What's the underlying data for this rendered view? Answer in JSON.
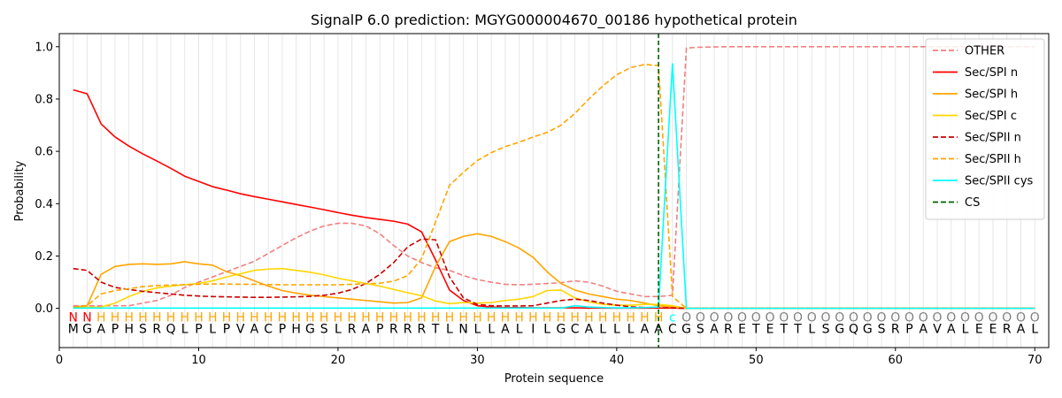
{
  "chart_data": {
    "type": "line",
    "title": "SignalP 6.0 prediction: MGYG000004670_00186 hypothetical protein",
    "xlabel": "Protein sequence",
    "ylabel": "Probability",
    "xlim": [
      0,
      71
    ],
    "ylim": [
      -0.15,
      1.05
    ],
    "x_ticks": [
      0,
      10,
      20,
      30,
      40,
      50,
      60,
      70
    ],
    "y_ticks": [
      0.0,
      0.2,
      0.4,
      0.6,
      0.8,
      1.0
    ],
    "y_tick_labels": [
      "0.0",
      "0.2",
      "0.4",
      "0.6",
      "0.8",
      "1.0"
    ],
    "grid": "vertical lines at every residue",
    "legend_position": "top-right",
    "sequence": [
      "M",
      "G",
      "A",
      "P",
      "H",
      "S",
      "R",
      "Q",
      "L",
      "P",
      "L",
      "P",
      "V",
      "A",
      "C",
      "P",
      "H",
      "G",
      "S",
      "L",
      "R",
      "A",
      "P",
      "R",
      "R",
      "R",
      "T",
      "L",
      "N",
      "L",
      "L",
      "A",
      "L",
      "I",
      "L",
      "G",
      "C",
      "A",
      "L",
      "L",
      "L",
      "A",
      "A",
      "C",
      "G",
      "S",
      "A",
      "R",
      "E",
      "T",
      "E",
      "T",
      "T",
      "L",
      "S",
      "G",
      "Q",
      "G",
      "S",
      "R",
      "P",
      "A",
      "V",
      "A",
      "L",
      "E",
      "E",
      "R",
      "A",
      "L"
    ],
    "labels": [
      "N",
      "N",
      "H",
      "H",
      "H",
      "H",
      "H",
      "H",
      "H",
      "H",
      "H",
      "H",
      "H",
      "H",
      "H",
      "H",
      "H",
      "H",
      "H",
      "H",
      "H",
      "H",
      "H",
      "H",
      "H",
      "H",
      "H",
      "H",
      "H",
      "H",
      "H",
      "H",
      "H",
      "H",
      "H",
      "H",
      "H",
      "H",
      "H",
      "H",
      "H",
      "H",
      "H",
      "C",
      "O",
      "O",
      "O",
      "O",
      "O",
      "O",
      "O",
      "O",
      "O",
      "O",
      "O",
      "O",
      "O",
      "O",
      "O",
      "O",
      "O",
      "O",
      "O",
      "O",
      "O",
      "O",
      "O",
      "O",
      "O",
      "O"
    ],
    "label_colors": {
      "N": "#ff0000",
      "H": "#ffa500",
      "C": "#00ffff",
      "O": "#808080"
    },
    "cs_position": 43,
    "cs_label": "CS",
    "cs_color": "#006400",
    "series": [
      {
        "name": "OTHER",
        "color": "#f08080",
        "dash": true,
        "values": [
          0.01,
          0.01,
          0.01,
          0.01,
          0.01,
          0.02,
          0.03,
          0.05,
          0.08,
          0.1,
          0.12,
          0.14,
          0.16,
          0.18,
          0.21,
          0.24,
          0.27,
          0.295,
          0.315,
          0.325,
          0.325,
          0.315,
          0.285,
          0.24,
          0.2,
          0.175,
          0.155,
          0.145,
          0.125,
          0.11,
          0.1,
          0.092,
          0.09,
          0.092,
          0.095,
          0.098,
          0.105,
          0.1,
          0.085,
          0.065,
          0.055,
          0.045,
          0.045,
          0.05,
          0.995,
          0.998,
          0.999,
          1.0,
          1.0,
          1.0,
          1.0,
          1.0,
          1.0,
          1.0,
          1.0,
          1.0,
          1.0,
          1.0,
          1.0,
          1.0,
          1.0,
          1.0,
          1.0,
          1.0,
          1.0,
          1.0,
          1.0,
          1.0,
          1.0,
          1.0
        ]
      },
      {
        "name": "Sec/SPI n",
        "color": "#ff0000",
        "dash": false,
        "values": [
          0.835,
          0.82,
          0.705,
          0.655,
          0.62,
          0.59,
          0.563,
          0.535,
          0.505,
          0.485,
          0.465,
          0.452,
          0.438,
          0.427,
          0.417,
          0.407,
          0.397,
          0.387,
          0.377,
          0.366,
          0.356,
          0.347,
          0.34,
          0.333,
          0.322,
          0.292,
          0.185,
          0.07,
          0.03,
          0.01,
          0.005,
          0.003,
          0.003,
          0.002,
          0.002,
          0.002,
          0.002,
          0.001,
          0.001,
          0.001,
          0.001,
          0.001,
          0.001,
          0.001,
          0,
          0,
          0,
          0,
          0,
          0,
          0,
          0,
          0,
          0,
          0,
          0,
          0,
          0,
          0,
          0,
          0,
          0,
          0,
          0,
          0,
          0,
          0,
          0,
          0,
          0
        ]
      },
      {
        "name": "Sec/SPI h",
        "color": "#ffa500",
        "dash": false,
        "values": [
          0.005,
          0.01,
          0.13,
          0.16,
          0.168,
          0.17,
          0.168,
          0.17,
          0.178,
          0.17,
          0.165,
          0.14,
          0.125,
          0.105,
          0.085,
          0.068,
          0.058,
          0.05,
          0.045,
          0.04,
          0.035,
          0.03,
          0.025,
          0.02,
          0.022,
          0.04,
          0.16,
          0.255,
          0.275,
          0.285,
          0.275,
          0.255,
          0.23,
          0.195,
          0.14,
          0.095,
          0.07,
          0.055,
          0.045,
          0.035,
          0.03,
          0.02,
          0.01,
          0.005,
          0,
          0,
          0,
          0,
          0,
          0,
          0,
          0,
          0,
          0,
          0,
          0,
          0,
          0,
          0,
          0,
          0,
          0,
          0,
          0,
          0,
          0,
          0,
          0,
          0,
          0
        ]
      },
      {
        "name": "Sec/SPI c",
        "color": "#ffd700",
        "dash": false,
        "values": [
          0.003,
          0.004,
          0.005,
          0.02,
          0.045,
          0.065,
          0.078,
          0.085,
          0.09,
          0.095,
          0.105,
          0.12,
          0.132,
          0.145,
          0.15,
          0.152,
          0.145,
          0.138,
          0.128,
          0.115,
          0.105,
          0.095,
          0.085,
          0.072,
          0.06,
          0.048,
          0.028,
          0.018,
          0.022,
          0.02,
          0.022,
          0.03,
          0.035,
          0.045,
          0.068,
          0.07,
          0.04,
          0.025,
          0.015,
          0.012,
          0.012,
          0.015,
          0.015,
          0.01,
          0,
          0,
          0,
          0,
          0,
          0,
          0,
          0,
          0,
          0,
          0,
          0,
          0,
          0,
          0,
          0,
          0,
          0,
          0,
          0,
          0,
          0,
          0,
          0,
          0,
          0
        ]
      },
      {
        "name": "Sec/SPII n",
        "color": "#cc0000",
        "dash": true,
        "values": [
          0.152,
          0.145,
          0.1,
          0.08,
          0.072,
          0.065,
          0.06,
          0.055,
          0.05,
          0.047,
          0.045,
          0.044,
          0.043,
          0.042,
          0.042,
          0.043,
          0.044,
          0.046,
          0.05,
          0.058,
          0.072,
          0.095,
          0.13,
          0.175,
          0.235,
          0.265,
          0.262,
          0.12,
          0.04,
          0.015,
          0.01,
          0.009,
          0.009,
          0.01,
          0.02,
          0.03,
          0.035,
          0.03,
          0.02,
          0.012,
          0.006,
          0.003,
          0.002,
          0.002,
          0,
          0,
          0,
          0,
          0,
          0,
          0,
          0,
          0,
          0,
          0,
          0,
          0,
          0,
          0,
          0,
          0,
          0,
          0,
          0,
          0,
          0,
          0,
          0,
          0,
          0
        ]
      },
      {
        "name": "Sec/SPII h",
        "color": "#ffa500",
        "dash": true,
        "values": [
          0.005,
          0.01,
          0.055,
          0.068,
          0.075,
          0.083,
          0.087,
          0.089,
          0.09,
          0.092,
          0.093,
          0.093,
          0.092,
          0.092,
          0.091,
          0.09,
          0.09,
          0.09,
          0.09,
          0.09,
          0.092,
          0.094,
          0.096,
          0.104,
          0.125,
          0.19,
          0.33,
          0.47,
          0.52,
          0.565,
          0.595,
          0.618,
          0.635,
          0.655,
          0.672,
          0.7,
          0.745,
          0.8,
          0.85,
          0.893,
          0.92,
          0.932,
          0.928,
          0.045,
          0,
          0,
          0,
          0,
          0,
          0,
          0,
          0,
          0,
          0,
          0,
          0,
          0,
          0,
          0,
          0,
          0,
          0,
          0,
          0,
          0,
          0,
          0,
          0,
          0,
          0
        ]
      },
      {
        "name": "Sec/SPII cys",
        "color": "#00ffff",
        "dash": false,
        "values": [
          0.001,
          0.001,
          0.001,
          0.001,
          0.001,
          0.001,
          0.001,
          0.001,
          0.001,
          0.001,
          0.001,
          0.001,
          0.001,
          0.001,
          0.001,
          0.001,
          0.001,
          0.001,
          0.001,
          0.001,
          0.001,
          0.001,
          0.001,
          0.001,
          0.001,
          0.001,
          0.001,
          0.001,
          0.001,
          0.001,
          0.001,
          0.001,
          0.001,
          0.001,
          0.001,
          0.001,
          0.01,
          0.005,
          0.003,
          0.002,
          0.002,
          0.003,
          0.005,
          0.935,
          0,
          0,
          0,
          0,
          0,
          0,
          0,
          0,
          0,
          0,
          0,
          0,
          0,
          0,
          0,
          0,
          0,
          0,
          0,
          0,
          0,
          0,
          0,
          0,
          0,
          0
        ]
      }
    ]
  }
}
